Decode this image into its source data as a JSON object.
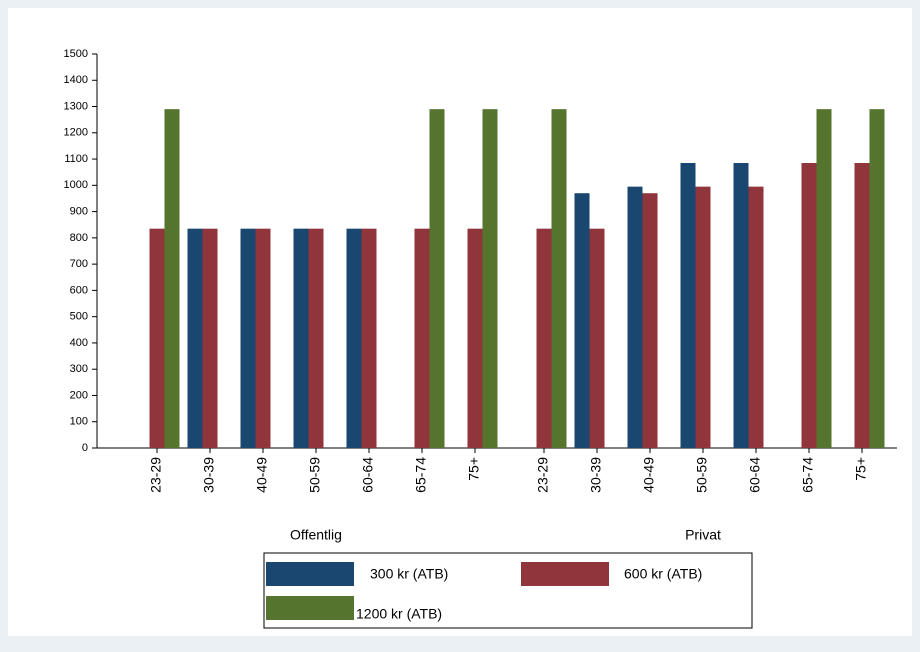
{
  "chart_data": {
    "type": "bar",
    "categories": [
      "23-29",
      "30-39",
      "40-49",
      "50-59",
      "60-64",
      "65-74",
      "75+",
      "23-29",
      "30-39",
      "40-49",
      "50-59",
      "60-64",
      "65-74",
      "75+"
    ],
    "group_labels": [
      "Offentlig",
      "Privat"
    ],
    "series": [
      {
        "name": "300 kr (ATB)",
        "color": "#1a476f",
        "values": [
          null,
          835,
          835,
          835,
          835,
          null,
          null,
          null,
          970,
          995,
          1085,
          1085,
          null,
          null
        ]
      },
      {
        "name": "600 kr (ATB)",
        "color": "#90353b",
        "values": [
          835,
          835,
          835,
          835,
          835,
          835,
          835,
          835,
          835,
          970,
          995,
          995,
          1085,
          1085
        ]
      },
      {
        "name": "1200 kr (ATB)",
        "color": "#55752f",
        "values": [
          1290,
          null,
          null,
          null,
          null,
          1290,
          1290,
          1290,
          null,
          null,
          null,
          null,
          1290,
          1290
        ]
      }
    ],
    "ylim": [
      0,
      1500
    ],
    "yticks": [
      0,
      100,
      200,
      300,
      400,
      500,
      600,
      700,
      800,
      900,
      1000,
      1100,
      1200,
      1300,
      1400,
      1500
    ]
  }
}
